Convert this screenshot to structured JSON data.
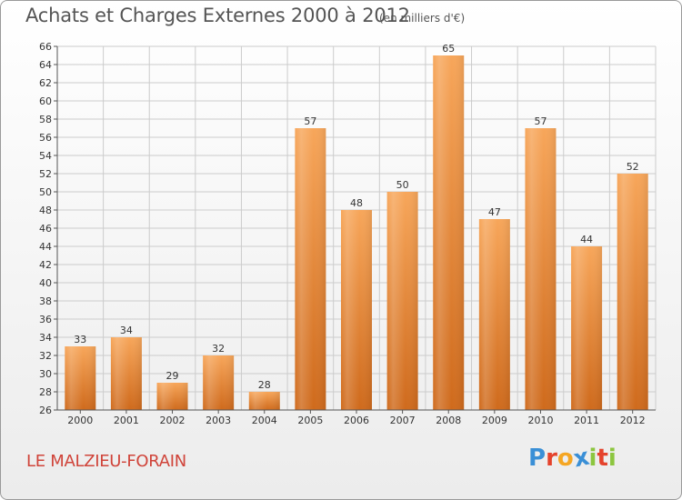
{
  "header": {
    "title": "Achats et Charges Externes 2000 à 2012",
    "subtitle": "(en milliers d'€)"
  },
  "footer": {
    "place": "LE MALZIEU-FORAIN",
    "logo": "Proxiti",
    "logo_colors": [
      "#3a8fd6",
      "#e5432c",
      "#f5a623",
      "#3a8fd6",
      "#8cc63f",
      "#e5432c",
      "#8cc63f"
    ]
  },
  "colors": {
    "bar_top": "#f7a65a",
    "bar_bottom": "#cf6a1c",
    "grid": "#cccccc",
    "axis": "#555555"
  },
  "chart_data": {
    "type": "bar",
    "categories": [
      "2000",
      "2001",
      "2002",
      "2003",
      "2004",
      "2005",
      "2006",
      "2007",
      "2008",
      "2009",
      "2010",
      "2011",
      "2012"
    ],
    "values": [
      33,
      34,
      29,
      32,
      28,
      57,
      48,
      50,
      65,
      47,
      57,
      44,
      52
    ],
    "title": "Achats et Charges Externes 2000 à 2012",
    "ylim": [
      26,
      66
    ],
    "ytick_step": 2,
    "grid": true,
    "data_labels": true
  }
}
